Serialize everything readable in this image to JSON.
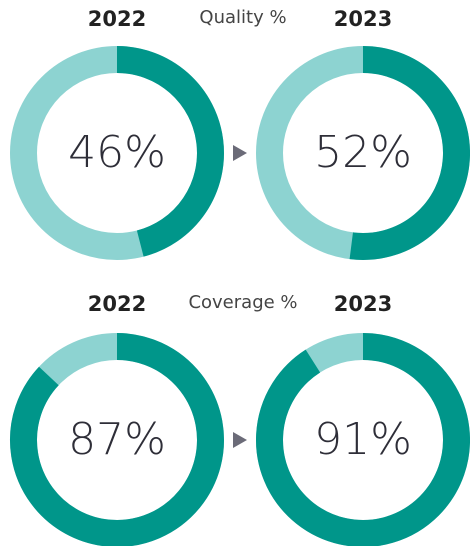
{
  "chart_data": [
    {
      "type": "donut",
      "title": "Quality %",
      "categories": [
        "2022",
        "2023"
      ],
      "values": [
        46,
        52
      ],
      "value_labels": [
        "46%",
        "52%"
      ],
      "color": "#00968a",
      "track_color": "#8dd3d1"
    },
    {
      "type": "donut",
      "title": "Coverage %",
      "categories": [
        "2022",
        "2023"
      ],
      "values": [
        87,
        91
      ],
      "value_labels": [
        "87%",
        "91%"
      ],
      "color": "#00968a",
      "track_color": "#8dd3d1"
    }
  ]
}
